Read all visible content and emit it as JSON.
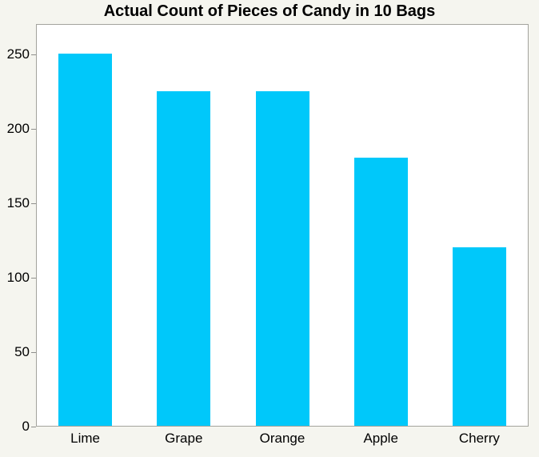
{
  "chart_data": {
    "type": "bar",
    "title": "Actual Count of Pieces of Candy in 10 Bags",
    "categories": [
      "Lime",
      "Grape",
      "Orange",
      "Apple",
      "Cherry"
    ],
    "values": [
      250,
      225,
      225,
      180,
      120
    ],
    "xlabel": "",
    "ylabel": "",
    "ylim": [
      0,
      250
    ],
    "yticks": [
      0,
      50,
      100,
      150,
      200,
      250
    ],
    "grid": false,
    "legend": false,
    "colors": {
      "bar": "#00c8fa",
      "page_background": "#f5f5ef",
      "plot_background": "#ffffff",
      "plot_border": "#a3a39d",
      "tick": "#8f8f8c",
      "text": "#000000"
    }
  }
}
